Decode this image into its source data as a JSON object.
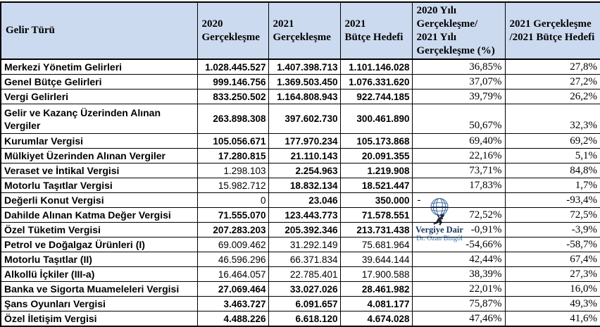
{
  "chart_data": {
    "type": "table",
    "title": "",
    "columns": [
      {
        "id": "gelir_turu",
        "lines": [
          "Gelir Türü"
        ]
      },
      {
        "id": "g2020",
        "lines": [
          "2020",
          "Gerçekleşme"
        ]
      },
      {
        "id": "g2021",
        "lines": [
          "2021",
          "Gerçekleşme"
        ]
      },
      {
        "id": "hedef2021",
        "lines": [
          "2021",
          "Bütçe Hedefi"
        ]
      },
      {
        "id": "pct_yoy",
        "lines": [
          "2020 Yılı",
          "Gerçekleşme/",
          "2021 Yılı",
          "Gerçekleşme (%)"
        ]
      },
      {
        "id": "pct_hedef",
        "lines": [
          "2021 Gerçekleşme",
          "/2021 Bütçe Hedefi"
        ]
      }
    ],
    "rows": [
      {
        "name": "Merkezi Yönetim Gelirleri",
        "v2020": "1.028.445.527",
        "v2021": "1.407.398.713",
        "hedef": "1.101.146.028",
        "pct_yoy": "36,85%",
        "pct_hedef": "27,8%",
        "bold": [
          true,
          true,
          true
        ],
        "tall": false
      },
      {
        "name": "Genel Bütçe Gelirleri",
        "v2020": "999.146.756",
        "v2021": "1.369.503.450",
        "hedef": "1.076.331.620",
        "pct_yoy": "37,07%",
        "pct_hedef": "27,2%",
        "bold": [
          true,
          true,
          true
        ],
        "tall": false
      },
      {
        "name": "Vergi Gelirleri",
        "v2020": "833.250.502",
        "v2021": "1.164.808.943",
        "hedef": "922.744.185",
        "pct_yoy": "39,79%",
        "pct_hedef": "26,2%",
        "bold": [
          true,
          true,
          true
        ],
        "tall": false
      },
      {
        "name": "Gelir ve  Kazanç Üzerinden Alınan Vergiler",
        "v2020": "263.898.308",
        "v2021": "397.602.730",
        "hedef": "300.461.890",
        "pct_yoy": "50,67%",
        "pct_hedef": "32,3%",
        "bold": [
          true,
          true,
          true
        ],
        "tall": true
      },
      {
        "name": "Kurumlar Vergisi",
        "v2020": "105.056.671",
        "v2021": "177.970.234",
        "hedef": "105.173.868",
        "pct_yoy": "69,40%",
        "pct_hedef": "69,2%",
        "bold": [
          true,
          true,
          true
        ],
        "tall": false
      },
      {
        "name": "Mülkiyet Üzerinden Alınan Vergiler",
        "v2020": "17.280.815",
        "v2021": "21.110.143",
        "hedef": "20.091.355",
        "pct_yoy": "22,16%",
        "pct_hedef": "5,1%",
        "bold": [
          true,
          true,
          true
        ],
        "tall": false
      },
      {
        "name": "Veraset ve İntikal Vergisi",
        "v2020": "1.298.103",
        "v2021": "2.254.963",
        "hedef": "1.219.908",
        "pct_yoy": "73,71%",
        "pct_hedef": "84,8%",
        "bold": [
          false,
          true,
          true
        ],
        "tall": false
      },
      {
        "name": "Motorlu Taşıtlar Vergisi",
        "v2020": "15.982.712",
        "v2021": "18.832.134",
        "hedef": "18.521.447",
        "pct_yoy": "17,83%",
        "pct_hedef": "1,7%",
        "bold": [
          false,
          true,
          true
        ],
        "tall": false
      },
      {
        "name": "Değerli Konut Vergisi",
        "v2020": "0",
        "v2021": "23.046",
        "hedef": "350.000",
        "pct_yoy": "-",
        "pct_hedef": "-93,4%",
        "bold": [
          false,
          true,
          true
        ],
        "tall": false
      },
      {
        "name": "Dahilde Alınan Katma Değer Vergisi",
        "v2020": "71.555.070",
        "v2021": "123.443.773",
        "hedef": "71.578.551",
        "pct_yoy": "72,52%",
        "pct_hedef": "72,5%",
        "bold": [
          true,
          true,
          true
        ],
        "tall": false
      },
      {
        "name": "Özel Tüketim Vergisi",
        "v2020": "207.283.203",
        "v2021": "205.392.346",
        "hedef": "213.731.438",
        "pct_yoy": "-0,91%",
        "pct_hedef": "-3,9%",
        "bold": [
          true,
          true,
          true
        ],
        "tall": false
      },
      {
        "name": "Petrol ve Doğalgaz Ürünleri (I)",
        "v2020": "69.009.462",
        "v2021": "31.292.149",
        "hedef": "75.681.964",
        "pct_yoy": "-54,66%",
        "pct_hedef": "-58,7%",
        "bold": [
          false,
          false,
          false
        ],
        "tall": false
      },
      {
        "name": "Motorlu Taşıtlar (II)",
        "v2020": "46.596.296",
        "v2021": "66.371.834",
        "hedef": "39.644.144",
        "pct_yoy": "42,44%",
        "pct_hedef": "67,4%",
        "bold": [
          false,
          false,
          false
        ],
        "tall": false
      },
      {
        "name": "Alkollü İçkiler (III-a)",
        "v2020": "16.464.057",
        "v2021": "22.785.401",
        "hedef": "17.900.588",
        "pct_yoy": "38,39%",
        "pct_hedef": "27,3%",
        "bold": [
          false,
          false,
          false
        ],
        "tall": false
      },
      {
        "name": "Banka ve Sigorta Muameleleri Vergisi",
        "v2020": "27.069.464",
        "v2021": "33.027.026",
        "hedef": "28.461.982",
        "pct_yoy": "22,01%",
        "pct_hedef": "16,0%",
        "bold": [
          true,
          true,
          true
        ],
        "tall": false
      },
      {
        "name": "Şans Oyunları Vergisi",
        "v2020": "3.463.727",
        "v2021": "6.091.657",
        "hedef": "4.081.177",
        "pct_yoy": "75,87%",
        "pct_hedef": "49,3%",
        "bold": [
          true,
          true,
          true
        ],
        "tall": false
      },
      {
        "name": "Özel İletişim Vergisi",
        "v2020": "4.488.226",
        "v2021": "6.618.120",
        "hedef": "4.674.028",
        "pct_yoy": "47,46%",
        "pct_hedef": "41,6%",
        "bold": [
          true,
          true,
          true
        ],
        "tall": false
      }
    ]
  },
  "watermark": {
    "line1": "Vergiye Dair",
    "line2": "Dr. Ozan Bingöl"
  },
  "colors": {
    "header_bg": "#CCDAEF",
    "grid": "#000000",
    "globe": "#4A72A8",
    "wm_text": "#17365D",
    "wm_sub": "#2E74B5"
  }
}
